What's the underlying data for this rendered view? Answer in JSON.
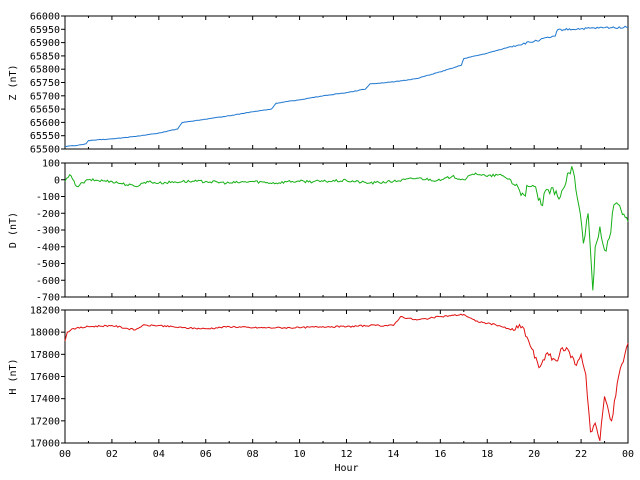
{
  "chart_data": [
    {
      "type": "line",
      "ylabel": "Z (nT)",
      "ylim": [
        65500,
        66000
      ],
      "yticks": [
        "66000",
        "65950",
        "65900",
        "65850",
        "65800",
        "65750",
        "65700",
        "65650",
        "65600",
        "65550",
        "65500"
      ],
      "grid": false,
      "series": [
        {
          "color": "#1f77d0",
          "x": [
            0,
            0.5,
            0.9,
            1.0,
            2.0,
            3.0,
            4.0,
            4.8,
            5.0,
            6.0,
            7.0,
            8.0,
            8.8,
            9.0,
            10.0,
            11.0,
            12.0,
            12.8,
            13.0,
            14.0,
            15.0,
            16.0,
            16.9,
            17.0,
            18.0,
            19.0,
            20.0,
            20.9,
            21.0,
            22.0,
            23.0,
            24.0
          ],
          "y": [
            65510,
            65513,
            65520,
            65532,
            65538,
            65547,
            65560,
            65575,
            65600,
            65612,
            65625,
            65640,
            65650,
            65672,
            65685,
            65700,
            65712,
            65725,
            65745,
            65752,
            65765,
            65790,
            65815,
            65840,
            65860,
            65885,
            65905,
            65925,
            65948,
            65952,
            65956,
            65958
          ]
        }
      ]
    },
    {
      "type": "line",
      "ylabel": "D (nT)",
      "ylim": [
        -700,
        100
      ],
      "yticks": [
        "100",
        "0",
        "-100",
        "-200",
        "-300",
        "-400",
        "-500",
        "-600",
        "-700"
      ],
      "grid": false,
      "series": [
        {
          "color": "#16b016",
          "x": [
            0,
            0.2,
            0.5,
            1.0,
            2.0,
            3.0,
            3.5,
            4.0,
            5.0,
            6.0,
            7.0,
            8.0,
            9.0,
            9.5,
            10.0,
            11.0,
            12.0,
            13.0,
            14.0,
            15.0,
            16.0,
            16.5,
            17.0,
            17.5,
            18.0,
            18.5,
            19.0,
            19.5,
            20.0,
            20.3,
            20.6,
            21.0,
            21.3,
            21.6,
            21.9,
            22.1,
            22.3,
            22.5,
            22.6,
            22.8,
            23.0,
            23.2,
            23.4,
            23.7,
            24.0
          ],
          "y": [
            -10,
            30,
            -40,
            0,
            -10,
            -40,
            -10,
            -20,
            -10,
            -10,
            -20,
            -10,
            -20,
            -10,
            -10,
            -10,
            -5,
            -20,
            -10,
            10,
            -5,
            20,
            0,
            40,
            20,
            30,
            0,
            -80,
            -40,
            -150,
            -60,
            -100,
            -40,
            80,
            -150,
            -380,
            -200,
            -660,
            -400,
            -280,
            -420,
            -350,
            -150,
            -180,
            -250
          ]
        }
      ]
    },
    {
      "type": "line",
      "ylabel": "H (nT)",
      "ylim": [
        17000,
        18200
      ],
      "yticks": [
        "18200",
        "18000",
        "17800",
        "17600",
        "17400",
        "17200",
        "17000"
      ],
      "xlabel": "Hour",
      "xticks": [
        "00",
        "02",
        "04",
        "06",
        "08",
        "10",
        "12",
        "14",
        "16",
        "18",
        "20",
        "22",
        "00"
      ],
      "grid": false,
      "series": [
        {
          "color": "#e01010",
          "x": [
            0,
            0.1,
            0.3,
            1.0,
            2.0,
            3.0,
            3.3,
            4.0,
            5.0,
            6.0,
            7.0,
            8.0,
            9.0,
            10.0,
            11.0,
            12.0,
            13.0,
            14.0,
            14.3,
            15.0,
            16.0,
            17.0,
            17.5,
            18.0,
            18.5,
            19.0,
            19.5,
            19.9,
            20.2,
            20.5,
            21.0,
            21.2,
            21.5,
            21.8,
            22.0,
            22.2,
            22.4,
            22.6,
            22.8,
            23.0,
            23.3,
            23.6,
            24.0
          ],
          "y": [
            17920,
            18000,
            18030,
            18050,
            18060,
            18020,
            18060,
            18060,
            18040,
            18030,
            18050,
            18040,
            18040,
            18040,
            18050,
            18050,
            18060,
            18060,
            18140,
            18110,
            18140,
            18160,
            18100,
            18080,
            18060,
            18020,
            18050,
            17850,
            17680,
            17800,
            17740,
            17860,
            17820,
            17700,
            17800,
            17620,
            17100,
            17180,
            17020,
            17420,
            17200,
            17600,
            17900
          ]
        }
      ]
    }
  ]
}
